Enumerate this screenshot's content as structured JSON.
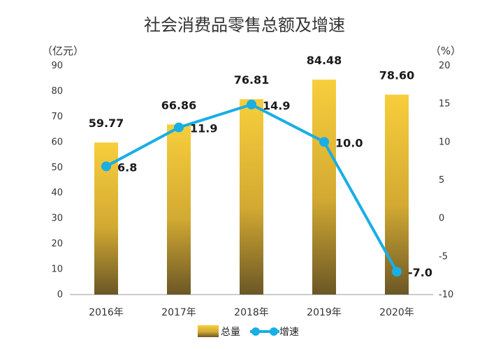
{
  "chart_data": {
    "type": "bar",
    "title": "社会消费品零售总额及增速",
    "categories": [
      "2016年",
      "2017年",
      "2018年",
      "2019年",
      "2020年"
    ],
    "series": [
      {
        "name": "总量",
        "type": "bar",
        "axis": "left",
        "values": [
          59.77,
          66.86,
          76.81,
          84.48,
          78.6
        ],
        "labels": [
          "59.77",
          "66.86",
          "76.81",
          "84.48",
          "78.60"
        ]
      },
      {
        "name": "增速",
        "type": "line",
        "axis": "right",
        "values": [
          6.8,
          11.9,
          14.9,
          10.0,
          -7.0
        ],
        "labels": [
          "6.8",
          "11.9",
          "14.9",
          "10.0",
          "-7.0"
        ]
      }
    ],
    "ylabel_left": "（亿元）",
    "ylabel_right": "（%）",
    "ylim_left": [
      0,
      90
    ],
    "ylim_right": [
      -10,
      20
    ],
    "yticks_left": [
      "0",
      "10",
      "20",
      "30",
      "40",
      "50",
      "60",
      "70",
      "80",
      "90"
    ],
    "yticks_right": [
      "-10",
      "-5",
      "0",
      "5",
      "10",
      "15",
      "20"
    ],
    "grid": false,
    "legend_position": "bottom",
    "colors": {
      "bar_top": "#f7ce3c",
      "bar_bottom": "#6b5726",
      "line": "#19aee4"
    }
  }
}
